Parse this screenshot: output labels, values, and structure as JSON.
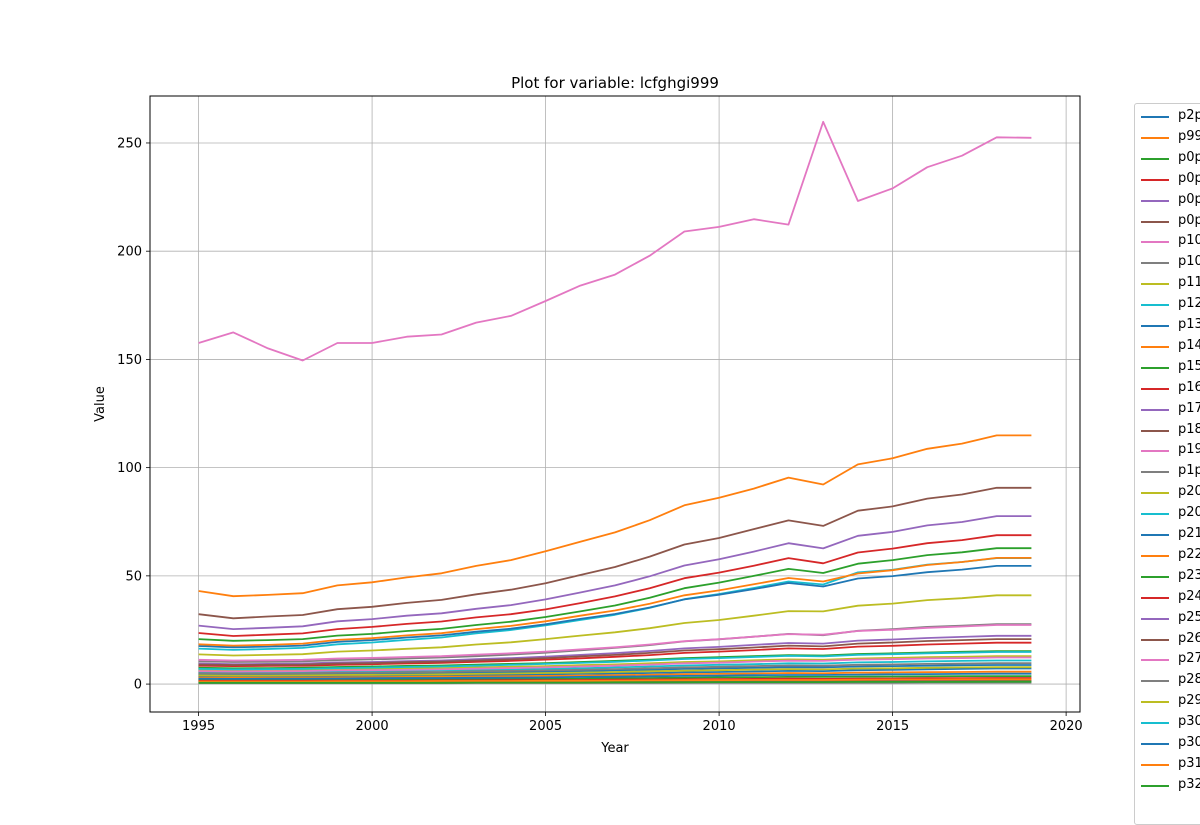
{
  "chart_data": {
    "type": "line",
    "title": "Plot for variable: lcfghgi999",
    "xlabel": "Year",
    "ylabel": "Value",
    "xlim": [
      1993.6,
      2020.4
    ],
    "ylim": [
      -12.9,
      271.7
    ],
    "grid": true,
    "legend_placement": "outside-right",
    "x_ticks": [
      1995,
      2000,
      2005,
      2010,
      2015,
      2020
    ],
    "y_ticks": [
      0,
      50,
      100,
      150,
      200,
      250
    ],
    "x": [
      1995,
      1996,
      1997,
      1998,
      1999,
      2000,
      2001,
      2002,
      2003,
      2004,
      2005,
      2006,
      2007,
      2008,
      2009,
      2010,
      2011,
      2012,
      2013,
      2014,
      2015,
      2016,
      2017,
      2018,
      2019
    ],
    "series": [
      {
        "name": "p2p",
        "color": "#1f77b4",
        "values": [
          3.5,
          3.4,
          3.5,
          3.5,
          3.7,
          3.8,
          3.9,
          4.0,
          4.2,
          4.3,
          4.5,
          4.7,
          4.9,
          5.1,
          5.4,
          5.6,
          5.8,
          6.1,
          6.0,
          6.4,
          6.6,
          6.8,
          7.0,
          7.2,
          7.2
        ]
      },
      {
        "name": "p99",
        "color": "#ff7f0e",
        "values": [
          43,
          40.6,
          41.2,
          42,
          45.6,
          47,
          49.3,
          51.2,
          54.6,
          57.3,
          61.4,
          65.8,
          70.1,
          75.7,
          82.6,
          86.1,
          90.3,
          95.4,
          92.2,
          101.5,
          104.3,
          108.7,
          111.1,
          114.9,
          114.9
        ]
      },
      {
        "name": "p0p",
        "color": "#2ca02c",
        "values": [
          20.8,
          20,
          20.3,
          20.8,
          22.4,
          23.2,
          24.5,
          25.5,
          27.3,
          28.8,
          31,
          33.6,
          36.3,
          39.9,
          44.3,
          46.9,
          50,
          53.2,
          51.3,
          55.6,
          57.3,
          59.6,
          60.9,
          62.8,
          62.8
        ]
      },
      {
        "name": "p0p",
        "color": "#d62728",
        "values": [
          23.6,
          22.2,
          22.8,
          23.4,
          25.4,
          26.4,
          27.8,
          28.9,
          30.8,
          32.3,
          34.5,
          37.4,
          40.5,
          44.3,
          48.9,
          51.5,
          54.7,
          58.2,
          55.8,
          60.8,
          62.6,
          65.1,
          66.5,
          68.8,
          68.8
        ]
      },
      {
        "name": "p0p",
        "color": "#9467bd",
        "values": [
          27,
          25.4,
          26,
          26.7,
          29,
          30,
          31.6,
          32.7,
          34.8,
          36.5,
          39.1,
          42.3,
          45.6,
          49.8,
          54.8,
          57.7,
          61.2,
          65.1,
          62.7,
          68.5,
          70.3,
          73.3,
          74.9,
          77.6,
          77.6
        ]
      },
      {
        "name": "p0p",
        "color": "#8c564b",
        "values": [
          32.3,
          30.4,
          31.2,
          31.9,
          34.6,
          35.7,
          37.5,
          38.9,
          41.5,
          43.6,
          46.6,
          50.4,
          54.1,
          58.9,
          64.5,
          67.5,
          71.6,
          75.6,
          73.1,
          80.1,
          82.1,
          85.7,
          87.6,
          90.7,
          90.7
        ]
      },
      {
        "name": "p10",
        "color": "#e377c2",
        "values": [
          157.6,
          162.5,
          155.1,
          149.5,
          157.6,
          157.6,
          160.5,
          161.5,
          167,
          170.1,
          177,
          184.1,
          189.2,
          197.9,
          209.1,
          211.2,
          214.8,
          212.3,
          259.8,
          223.2,
          229,
          238.8,
          244.1,
          252.6,
          252.4
        ]
      },
      {
        "name": "p10",
        "color": "#7f7f7f",
        "values": [
          10.5,
          10.2,
          10.3,
          10.5,
          11.1,
          11.4,
          11.8,
          12.3,
          12.9,
          13.6,
          14.5,
          15.6,
          16.7,
          18,
          19.7,
          20.7,
          21.9,
          23.2,
          22.6,
          24.6,
          25.4,
          26.4,
          27,
          27.7,
          27.7
        ]
      },
      {
        "name": "p11",
        "color": "#bcbd22",
        "values": [
          13.7,
          13.2,
          13.5,
          13.8,
          15,
          15.5,
          16.3,
          17,
          18.3,
          19.3,
          20.8,
          22.4,
          23.9,
          25.8,
          28.2,
          29.6,
          31.6,
          33.7,
          33.6,
          36.2,
          37.2,
          38.8,
          39.7,
          41,
          41
        ]
      },
      {
        "name": "p12",
        "color": "#17becf",
        "values": [
          16.4,
          15.8,
          16.2,
          16.7,
          18.4,
          19.2,
          20.4,
          21.5,
          23.4,
          25,
          27.1,
          29.6,
          32,
          35.2,
          39.2,
          41.6,
          44.4,
          47.4,
          46,
          51.6,
          52.8,
          55.2,
          56.4,
          58.2,
          58.2
        ]
      },
      {
        "name": "p13",
        "color": "#1f77b4",
        "values": [
          17.6,
          17,
          17.3,
          17.8,
          19.5,
          20.3,
          21.5,
          22.5,
          24.2,
          25.6,
          27.6,
          30.1,
          32.4,
          35.4,
          39.1,
          41.3,
          43.9,
          46.7,
          45.1,
          48.8,
          49.9,
          51.7,
          52.9,
          54.6,
          54.6
        ]
      },
      {
        "name": "p14",
        "color": "#ff7f0e",
        "values": [
          18.4,
          17.8,
          18.1,
          18.7,
          20.4,
          21.2,
          22.5,
          23.5,
          25.4,
          26.9,
          29,
          31.6,
          34,
          37.1,
          41,
          43.3,
          46.1,
          49,
          47.4,
          51.1,
          52.6,
          55,
          56.4,
          58.3,
          58.3
        ]
      },
      {
        "name": "p15",
        "color": "#2ca02c",
        "values": [
          7.5,
          7.3,
          7.4,
          7.5,
          7.9,
          8.1,
          8.4,
          8.6,
          9,
          9.3,
          9.7,
          10.2,
          10.7,
          11.3,
          12,
          12.4,
          12.9,
          13.4,
          13.2,
          13.9,
          14.2,
          14.6,
          14.9,
          15.2,
          15.2
        ]
      },
      {
        "name": "p16",
        "color": "#d62728",
        "values": [
          8.5,
          8.3,
          8.4,
          8.5,
          8.9,
          9.2,
          9.5,
          9.8,
          10.3,
          10.7,
          11.3,
          11.9,
          12.6,
          13.4,
          14.4,
          15,
          15.7,
          16.5,
          16.2,
          17.3,
          17.7,
          18.3,
          18.7,
          19.1,
          19.1
        ]
      },
      {
        "name": "p17",
        "color": "#9467bd",
        "values": [
          9.5,
          9.2,
          9.3,
          9.5,
          10,
          10.2,
          10.6,
          10.9,
          11.5,
          12,
          12.7,
          13.5,
          14.3,
          15.3,
          16.5,
          17.2,
          18.1,
          19,
          18.7,
          20.1,
          20.6,
          21.3,
          21.8,
          22.3,
          22.3
        ]
      },
      {
        "name": "p18",
        "color": "#8c564b",
        "values": [
          9,
          8.8,
          8.9,
          9,
          9.5,
          9.7,
          10.1,
          10.4,
          10.9,
          11.4,
          12,
          12.8,
          13.5,
          14.4,
          15.5,
          16.1,
          16.9,
          17.8,
          17.4,
          18.7,
          19.2,
          19.9,
          20.3,
          20.8,
          20.8
        ]
      },
      {
        "name": "p19",
        "color": "#e377c2",
        "values": [
          11.2,
          10.9,
          11,
          11.2,
          11.8,
          12.1,
          12.5,
          12.9,
          13.6,
          14.2,
          15,
          16,
          17,
          18.3,
          19.8,
          20.8,
          21.9,
          23.1,
          22.8,
          24.5,
          25.1,
          26,
          26.6,
          27.3,
          27.3
        ]
      },
      {
        "name": "p1p",
        "color": "#7f7f7f",
        "values": [
          0.4,
          0.4,
          0.4,
          0.4,
          0.4,
          0.4,
          0.4,
          0.4,
          0.5,
          0.5,
          0.5,
          0.5,
          0.5,
          0.5,
          0.6,
          0.6,
          0.6,
          0.6,
          0.6,
          0.6,
          0.6,
          0.7,
          0.7,
          0.7,
          0.7
        ]
      },
      {
        "name": "p20",
        "color": "#bcbd22",
        "values": [
          6.5,
          6.3,
          6.4,
          6.5,
          6.8,
          7,
          7.2,
          7.4,
          7.7,
          8,
          8.3,
          8.7,
          9.1,
          9.6,
          10.2,
          10.5,
          11,
          11.4,
          11.2,
          11.8,
          12.1,
          12.4,
          12.6,
          12.9,
          12.9
        ]
      },
      {
        "name": "p20",
        "color": "#17becf",
        "values": [
          5.5,
          5.3,
          5.4,
          5.5,
          5.8,
          5.9,
          6.1,
          6.3,
          6.5,
          6.7,
          7,
          7.3,
          7.7,
          8.1,
          8.6,
          8.9,
          9.2,
          9.6,
          9.5,
          10,
          10.2,
          10.5,
          10.7,
          10.9,
          10.9
        ]
      },
      {
        "name": "p21",
        "color": "#1f77b4",
        "values": [
          4.5,
          4.4,
          4.4,
          4.5,
          4.7,
          4.8,
          5,
          5.1,
          5.3,
          5.5,
          5.7,
          6,
          6.3,
          6.6,
          7,
          7.3,
          7.5,
          7.8,
          7.7,
          8.1,
          8.3,
          8.5,
          8.7,
          8.8,
          8.8
        ]
      },
      {
        "name": "p22",
        "color": "#ff7f0e",
        "values": [
          3,
          2.9,
          2.9,
          3,
          3.1,
          3.2,
          3.3,
          3.4,
          3.5,
          3.6,
          3.8,
          3.9,
          4.1,
          4.3,
          4.6,
          4.7,
          4.9,
          5.1,
          5,
          5.3,
          5.4,
          5.5,
          5.6,
          5.7,
          5.7
        ]
      },
      {
        "name": "p23",
        "color": "#2ca02c",
        "values": [
          2,
          1.9,
          2,
          2,
          2.1,
          2.1,
          2.2,
          2.2,
          2.3,
          2.4,
          2.5,
          2.6,
          2.7,
          2.8,
          3,
          3.1,
          3.2,
          3.3,
          3.3,
          3.4,
          3.5,
          3.6,
          3.7,
          3.7,
          3.7
        ]
      },
      {
        "name": "p24",
        "color": "#d62728",
        "values": [
          1.5,
          1.5,
          1.5,
          1.5,
          1.6,
          1.6,
          1.6,
          1.7,
          1.7,
          1.8,
          1.8,
          1.9,
          2,
          2.1,
          2.2,
          2.3,
          2.4,
          2.5,
          2.4,
          2.5,
          2.6,
          2.7,
          2.7,
          2.8,
          2.8
        ]
      },
      {
        "name": "p25",
        "color": "#9467bd",
        "values": [
          1,
          1,
          1,
          1,
          1,
          1.1,
          1.1,
          1.1,
          1.1,
          1.2,
          1.2,
          1.3,
          1.3,
          1.4,
          1.4,
          1.5,
          1.5,
          1.6,
          1.6,
          1.7,
          1.7,
          1.7,
          1.8,
          1.8,
          1.8
        ]
      },
      {
        "name": "p26",
        "color": "#8c564b",
        "values": [
          0.8,
          0.8,
          0.8,
          0.8,
          0.8,
          0.8,
          0.9,
          0.9,
          0.9,
          0.9,
          1,
          1,
          1,
          1.1,
          1.1,
          1.2,
          1.2,
          1.2,
          1.2,
          1.3,
          1.3,
          1.3,
          1.4,
          1.4,
          1.4
        ]
      },
      {
        "name": "p27",
        "color": "#e377c2",
        "values": [
          6,
          5.8,
          5.9,
          6,
          6.3,
          6.4,
          6.6,
          6.8,
          7.1,
          7.4,
          7.7,
          8.1,
          8.5,
          9,
          9.6,
          9.9,
          10.4,
          10.8,
          10.7,
          11.3,
          11.5,
          11.8,
          12,
          12.3,
          12.3
        ]
      },
      {
        "name": "p28",
        "color": "#7f7f7f",
        "values": [
          5,
          4.9,
          4.9,
          5,
          5.2,
          5.3,
          5.5,
          5.6,
          5.9,
          6.1,
          6.3,
          6.6,
          6.9,
          7.3,
          7.7,
          8,
          8.3,
          8.6,
          8.5,
          8.9,
          9.1,
          9.3,
          9.5,
          9.7,
          9.7
        ]
      },
      {
        "name": "p29",
        "color": "#bcbd22",
        "values": [
          4,
          3.9,
          3.9,
          4,
          4.2,
          4.3,
          4.4,
          4.5,
          4.7,
          4.9,
          5.1,
          5.3,
          5.6,
          5.9,
          6.2,
          6.4,
          6.7,
          6.9,
          6.8,
          7.2,
          7.3,
          7.5,
          7.7,
          7.8,
          7.8
        ]
      },
      {
        "name": "p30",
        "color": "#17becf",
        "values": [
          7,
          6.8,
          6.9,
          7,
          7.4,
          7.6,
          7.9,
          8.1,
          8.5,
          8.9,
          9.3,
          9.8,
          10.3,
          10.9,
          11.6,
          12,
          12.5,
          13,
          12.8,
          13.5,
          13.8,
          14.2,
          14.5,
          14.8,
          14.8
        ]
      },
      {
        "name": "p30",
        "color": "#1f77b4",
        "values": [
          2.5,
          2.4,
          2.5,
          2.5,
          2.6,
          2.7,
          2.8,
          2.8,
          2.9,
          3,
          3.1,
          3.3,
          3.4,
          3.6,
          3.8,
          3.9,
          4.1,
          4.2,
          4.2,
          4.4,
          4.5,
          4.6,
          4.7,
          4.8,
          4.8
        ]
      },
      {
        "name": "p31",
        "color": "#ff7f0e",
        "values": [
          1.2,
          1.2,
          1.2,
          1.2,
          1.3,
          1.3,
          1.3,
          1.4,
          1.4,
          1.4,
          1.5,
          1.5,
          1.6,
          1.7,
          1.8,
          1.8,
          1.9,
          1.9,
          1.9,
          2,
          2.1,
          2.1,
          2.2,
          2.2,
          2.2
        ]
      },
      {
        "name": "p32",
        "color": "#2ca02c",
        "values": [
          0.6,
          0.6,
          0.6,
          0.6,
          0.6,
          0.6,
          0.6,
          0.6,
          0.7,
          0.7,
          0.7,
          0.7,
          0.8,
          0.8,
          0.8,
          0.9,
          0.9,
          0.9,
          0.9,
          1,
          1,
          1,
          1,
          1.1,
          1.1
        ]
      }
    ]
  }
}
